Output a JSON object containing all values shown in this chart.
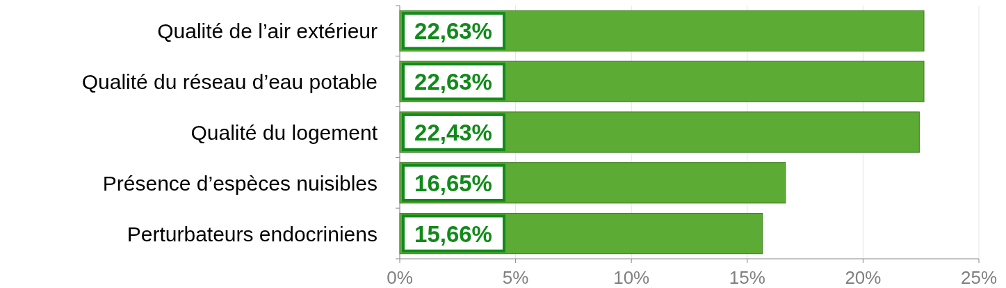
{
  "chart_data": {
    "type": "bar",
    "orientation": "horizontal",
    "categories": [
      "Qualité de l’air extérieur",
      "Qualité du réseau d’eau potable",
      "Qualité du logement",
      "Présence d’espèces nuisibles",
      "Perturbateurs endocriniens"
    ],
    "values": [
      22.63,
      22.63,
      22.43,
      16.65,
      15.66
    ],
    "value_labels": [
      "22,63%",
      "22,63%",
      "22,43%",
      "16,65%",
      "15,66%"
    ],
    "color": "#5cab34",
    "xlim": [
      0,
      25
    ],
    "xticks": [
      {
        "value": 0,
        "label": "0%"
      },
      {
        "value": 5,
        "label": "5%"
      },
      {
        "value": 10,
        "label": "10%"
      },
      {
        "value": 15,
        "label": "15%"
      },
      {
        "value": 20,
        "label": "20%"
      },
      {
        "value": 25,
        "label": "25%"
      }
    ],
    "grid": "x"
  }
}
